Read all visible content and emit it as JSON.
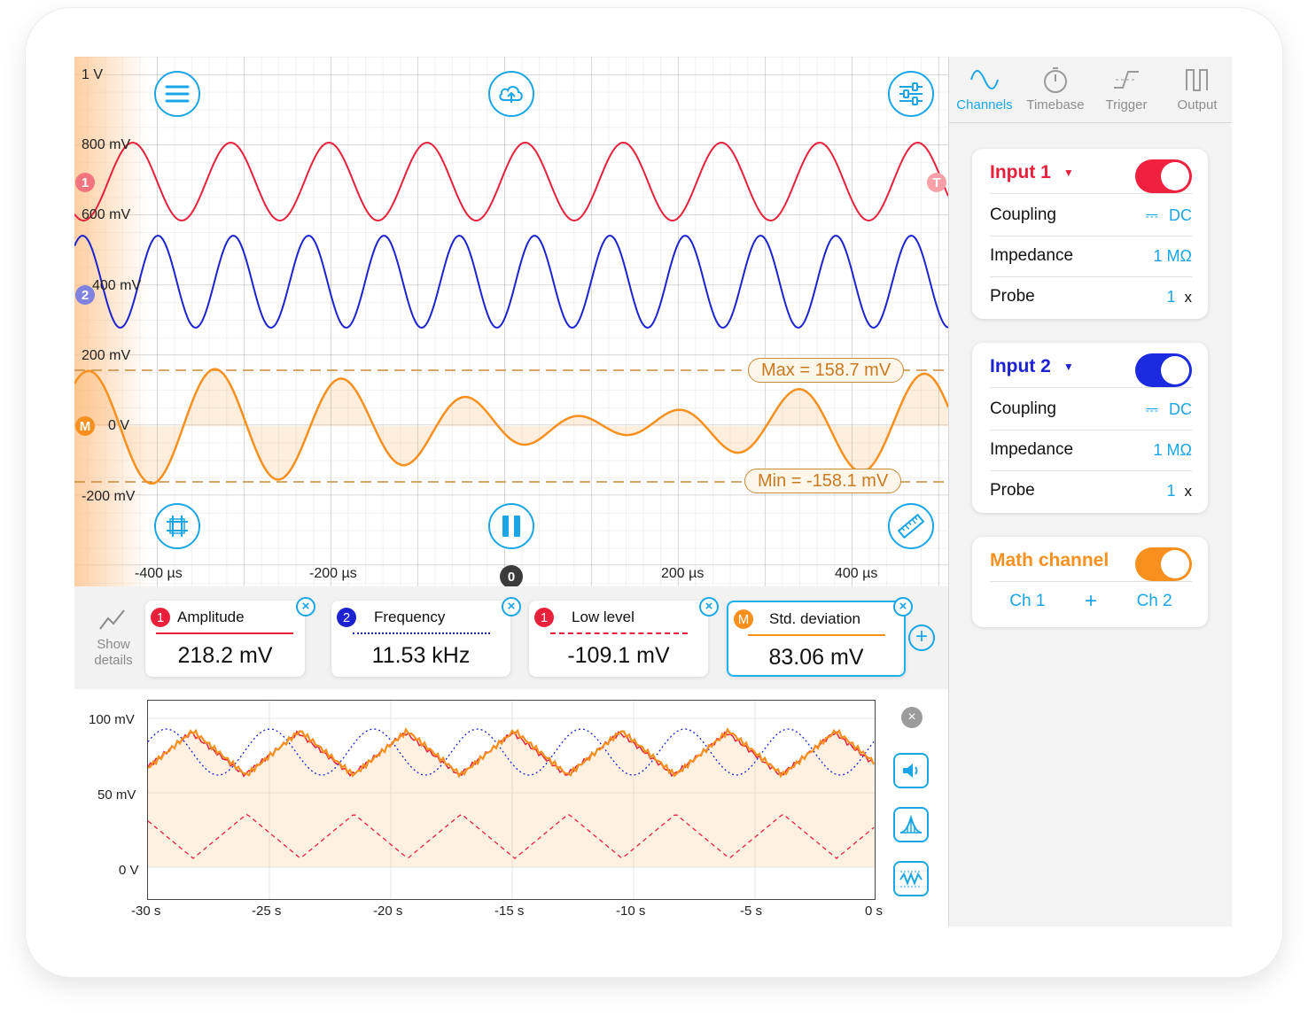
{
  "scope": {
    "volt_labels": [
      "1 V",
      "800 mV",
      "600 mV",
      "400 mV",
      "200 mV",
      "0 V",
      "-200 mV"
    ],
    "time_labels": [
      "-400 µs",
      "-200 µs",
      "200 µs",
      "400 µs"
    ],
    "trigger_position_label": "0",
    "markers": {
      "ch1": "1",
      "ch2": "2",
      "math": "M",
      "trigger": "T"
    },
    "max_label": "Max = 158.7 mV",
    "min_label": "Min = -158.1 mV",
    "colors": {
      "ch1": "#e8203c",
      "ch2": "#1c22d0",
      "math": "#f7901e",
      "accent": "#1aa6e6"
    }
  },
  "measurements": {
    "show_details": "Show details",
    "cards": [
      {
        "badge": "1",
        "name": "Amplitude",
        "value": "218.2 mV"
      },
      {
        "badge": "2",
        "name": "Frequency",
        "value": "11.53 kHz"
      },
      {
        "badge": "1",
        "name": "Low level",
        "value": "-109.1 mV"
      },
      {
        "badge": "M",
        "name": "Std. deviation",
        "value": "83.06 mV"
      }
    ]
  },
  "history": {
    "y_labels": [
      "100 mV",
      "50 mV",
      "0 V"
    ],
    "x_labels": [
      "-30 s",
      "-25 s",
      "-20 s",
      "-15 s",
      "-10 s",
      "-5 s",
      "0 s"
    ]
  },
  "panel": {
    "tabs": [
      "Channels",
      "Timebase",
      "Trigger",
      "Output"
    ],
    "input1": {
      "title": "Input 1",
      "coupling_label": "Coupling",
      "coupling_value": "DC",
      "impedance_label": "Impedance",
      "impedance_value": "1 MΩ",
      "probe_label": "Probe",
      "probe_value": "1",
      "probe_unit": "x"
    },
    "input2": {
      "title": "Input 2",
      "coupling_label": "Coupling",
      "coupling_value": "DC",
      "impedance_label": "Impedance",
      "impedance_value": "1 MΩ",
      "probe_label": "Probe",
      "probe_value": "1",
      "probe_unit": "x"
    },
    "math": {
      "title": "Math channel",
      "operand1": "Ch 1",
      "operator": "+",
      "operand2": "Ch 2"
    }
  }
}
